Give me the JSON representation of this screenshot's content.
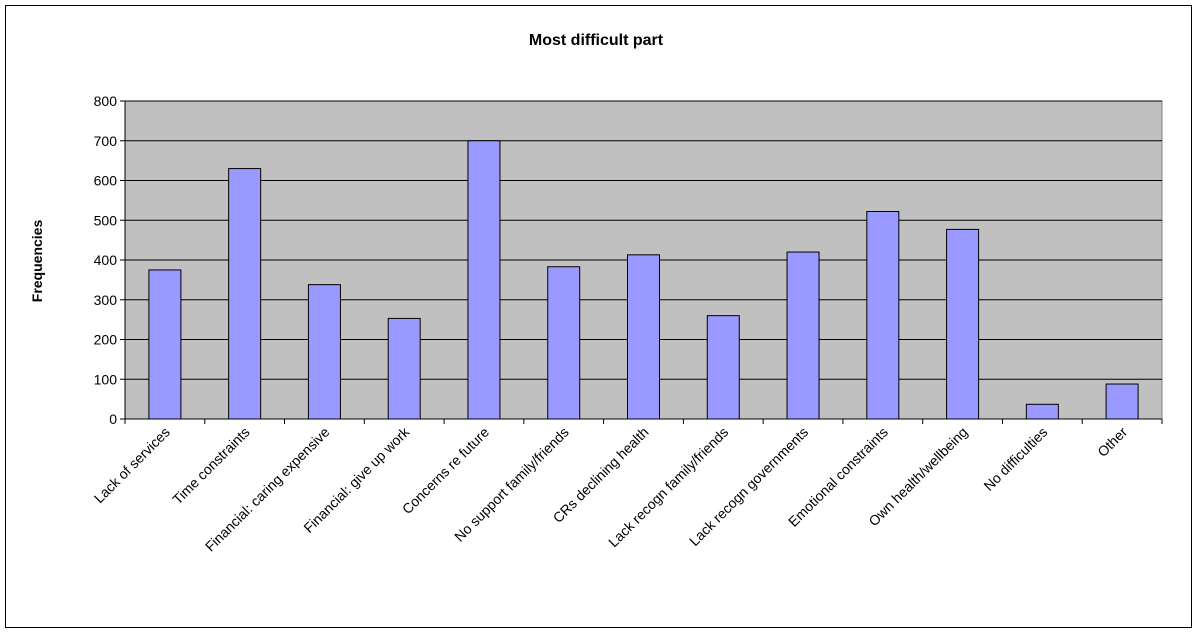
{
  "chart_data": {
    "type": "bar",
    "title": "Most difficult part",
    "xlabel": "",
    "ylabel": "Frequencies",
    "ylim": [
      0,
      800
    ],
    "yticks": [
      0,
      100,
      200,
      300,
      400,
      500,
      600,
      700,
      800
    ],
    "grid": true,
    "legend": "none",
    "categories": [
      "Lack of services",
      "Time constraints",
      "Financial: caring expensive",
      "Financial: give up work",
      "Concerns re future",
      "No support family/friends",
      "CRs declining health",
      "Lack recogn family/friends",
      "Lack recogn governments",
      "Emotional constraints",
      "Own health/wellbeing",
      "No difficulties",
      "Other"
    ],
    "values": [
      375,
      630,
      338,
      253,
      700,
      383,
      413,
      260,
      420,
      522,
      477,
      37,
      88
    ]
  },
  "colors": {
    "plot_background": "#c0c0c0",
    "bar_fill": "#9999ff",
    "bar_stroke": "#000000",
    "gridline": "#000000"
  }
}
